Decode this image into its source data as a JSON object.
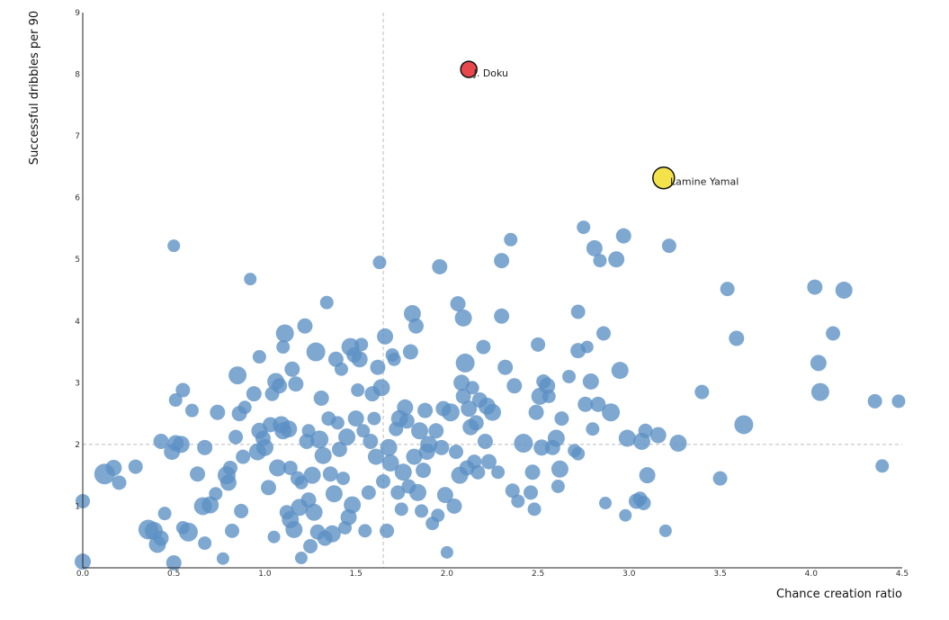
{
  "chart_data": {
    "type": "scatter",
    "title": "",
    "xlabel": "Chance creation ratio",
    "ylabel": "Successful dribbles per 90",
    "xlim": [
      0,
      4.5
    ],
    "ylim": [
      0,
      9
    ],
    "x_ticks": [
      "0.0",
      "0.5",
      "1.0",
      "1.5",
      "2.0",
      "2.5",
      "3.0",
      "3.5",
      "4.0",
      "4.5"
    ],
    "y_ticks": [
      "1",
      "2",
      "3",
      "4",
      "5",
      "6",
      "7",
      "8",
      "9"
    ],
    "reference_lines": {
      "x": 1.65,
      "y": 2.0
    },
    "grid": false,
    "colors": {
      "points": "#5b8fc4",
      "doku": "#e8474c",
      "yamal": "#f3e24a",
      "reference": "#bbbbbb"
    },
    "highlighted": [
      {
        "label": "J. Doku",
        "x": 2.12,
        "y": 8.08,
        "size": 0.5,
        "color": "#e8474c"
      },
      {
        "label": "Lamine Yamal",
        "x": 3.19,
        "y": 6.32,
        "size": 0.8,
        "color": "#f3e24a"
      }
    ],
    "points": [
      [
        0.0,
        0.1,
        0.5
      ],
      [
        0.0,
        1.08,
        0.4
      ],
      [
        0.12,
        1.52,
        0.75
      ],
      [
        0.17,
        1.62,
        0.5
      ],
      [
        0.2,
        1.38,
        0.4
      ],
      [
        0.29,
        1.64,
        0.4
      ],
      [
        0.36,
        0.62,
        0.7
      ],
      [
        0.39,
        0.6,
        0.6
      ],
      [
        0.41,
        0.38,
        0.55
      ],
      [
        0.43,
        0.48,
        0.45
      ],
      [
        0.45,
        0.88,
        0.35
      ],
      [
        0.43,
        2.05,
        0.45
      ],
      [
        0.49,
        1.88,
        0.5
      ],
      [
        0.51,
        2.02,
        0.5
      ],
      [
        0.54,
        2.0,
        0.55
      ],
      [
        0.5,
        5.22,
        0.3
      ],
      [
        0.51,
        2.72,
        0.35
      ],
      [
        0.55,
        2.88,
        0.4
      ],
      [
        0.5,
        0.08,
        0.45
      ],
      [
        0.55,
        0.65,
        0.35
      ],
      [
        0.58,
        0.58,
        0.65
      ],
      [
        0.6,
        2.55,
        0.35
      ],
      [
        0.63,
        1.52,
        0.45
      ],
      [
        0.67,
        1.95,
        0.45
      ],
      [
        0.66,
        1.0,
        0.6
      ],
      [
        0.67,
        0.4,
        0.35
      ],
      [
        0.7,
        1.02,
        0.55
      ],
      [
        0.73,
        1.2,
        0.35
      ],
      [
        0.74,
        2.52,
        0.45
      ],
      [
        0.77,
        0.15,
        0.3
      ],
      [
        0.79,
        1.5,
        0.6
      ],
      [
        0.8,
        1.38,
        0.5
      ],
      [
        0.81,
        1.62,
        0.4
      ],
      [
        0.82,
        0.6,
        0.4
      ],
      [
        0.84,
        2.12,
        0.4
      ],
      [
        0.85,
        3.12,
        0.6
      ],
      [
        0.86,
        2.5,
        0.45
      ],
      [
        0.87,
        0.92,
        0.4
      ],
      [
        0.88,
        1.8,
        0.4
      ],
      [
        0.89,
        2.6,
        0.35
      ],
      [
        0.92,
        4.68,
        0.3
      ],
      [
        0.94,
        2.82,
        0.45
      ],
      [
        0.96,
        1.88,
        0.55
      ],
      [
        0.97,
        2.22,
        0.5
      ],
      [
        0.97,
        3.42,
        0.35
      ],
      [
        0.99,
        2.1,
        0.45
      ],
      [
        1.0,
        1.95,
        0.55
      ],
      [
        1.02,
        1.3,
        0.45
      ],
      [
        1.03,
        2.32,
        0.45
      ],
      [
        1.04,
        2.82,
        0.4
      ],
      [
        1.05,
        0.5,
        0.3
      ],
      [
        1.06,
        3.02,
        0.55
      ],
      [
        1.07,
        1.62,
        0.55
      ],
      [
        1.08,
        2.95,
        0.45
      ],
      [
        1.09,
        2.32,
        0.55
      ],
      [
        1.1,
        3.58,
        0.35
      ],
      [
        1.1,
        2.22,
        0.55
      ],
      [
        1.11,
        3.8,
        0.6
      ],
      [
        1.12,
        0.9,
        0.4
      ],
      [
        1.13,
        2.25,
        0.55
      ],
      [
        1.14,
        1.62,
        0.4
      ],
      [
        1.14,
        0.78,
        0.55
      ],
      [
        1.15,
        3.22,
        0.45
      ],
      [
        1.16,
        0.62,
        0.55
      ],
      [
        1.17,
        2.98,
        0.45
      ],
      [
        1.18,
        1.45,
        0.4
      ],
      [
        1.19,
        0.98,
        0.55
      ],
      [
        1.2,
        1.38,
        0.35
      ],
      [
        1.2,
        0.16,
        0.3
      ],
      [
        1.22,
        3.92,
        0.45
      ],
      [
        1.23,
        2.05,
        0.45
      ],
      [
        1.24,
        1.1,
        0.45
      ],
      [
        1.24,
        2.22,
        0.35
      ],
      [
        1.25,
        0.35,
        0.4
      ],
      [
        1.26,
        1.5,
        0.55
      ],
      [
        1.27,
        0.9,
        0.55
      ],
      [
        1.28,
        3.5,
        0.65
      ],
      [
        1.29,
        0.58,
        0.45
      ],
      [
        1.3,
        2.08,
        0.6
      ],
      [
        1.31,
        2.75,
        0.45
      ],
      [
        1.32,
        1.82,
        0.55
      ],
      [
        1.33,
        0.48,
        0.45
      ],
      [
        1.34,
        4.3,
        0.35
      ],
      [
        1.35,
        2.42,
        0.4
      ],
      [
        1.36,
        1.52,
        0.45
      ],
      [
        1.37,
        0.55,
        0.55
      ],
      [
        1.38,
        1.2,
        0.55
      ],
      [
        1.39,
        3.38,
        0.45
      ],
      [
        1.4,
        2.35,
        0.35
      ],
      [
        1.41,
        1.92,
        0.45
      ],
      [
        1.42,
        3.22,
        0.35
      ],
      [
        1.43,
        1.45,
        0.35
      ],
      [
        1.44,
        0.65,
        0.35
      ],
      [
        1.45,
        2.12,
        0.55
      ],
      [
        1.46,
        0.82,
        0.5
      ],
      [
        1.47,
        3.58,
        0.6
      ],
      [
        1.48,
        1.02,
        0.55
      ],
      [
        1.49,
        3.45,
        0.45
      ],
      [
        1.5,
        2.42,
        0.5
      ],
      [
        1.51,
        2.88,
        0.35
      ],
      [
        1.52,
        3.38,
        0.5
      ],
      [
        1.53,
        3.62,
        0.35
      ],
      [
        1.54,
        2.22,
        0.35
      ],
      [
        1.55,
        0.6,
        0.35
      ],
      [
        1.57,
        1.22,
        0.4
      ],
      [
        1.58,
        2.05,
        0.45
      ],
      [
        1.59,
        2.82,
        0.45
      ],
      [
        1.6,
        2.42,
        0.35
      ],
      [
        1.61,
        1.8,
        0.5
      ],
      [
        1.62,
        3.25,
        0.45
      ],
      [
        1.63,
        4.95,
        0.35
      ],
      [
        1.64,
        2.92,
        0.55
      ],
      [
        1.65,
        1.4,
        0.4
      ],
      [
        1.66,
        3.75,
        0.5
      ],
      [
        1.67,
        0.6,
        0.4
      ],
      [
        1.68,
        1.95,
        0.55
      ],
      [
        1.69,
        1.7,
        0.55
      ],
      [
        1.7,
        3.45,
        0.35
      ],
      [
        1.71,
        3.38,
        0.35
      ],
      [
        1.72,
        2.25,
        0.4
      ],
      [
        1.73,
        1.22,
        0.4
      ],
      [
        1.74,
        2.42,
        0.55
      ],
      [
        1.75,
        0.95,
        0.35
      ],
      [
        1.76,
        1.55,
        0.55
      ],
      [
        1.77,
        2.6,
        0.5
      ],
      [
        1.78,
        2.38,
        0.45
      ],
      [
        1.79,
        1.32,
        0.4
      ],
      [
        1.8,
        3.5,
        0.45
      ],
      [
        1.81,
        4.12,
        0.55
      ],
      [
        1.82,
        1.8,
        0.5
      ],
      [
        1.83,
        3.92,
        0.45
      ],
      [
        1.84,
        1.22,
        0.55
      ],
      [
        1.85,
        2.22,
        0.55
      ],
      [
        1.86,
        0.92,
        0.35
      ],
      [
        1.87,
        1.58,
        0.45
      ],
      [
        1.88,
        2.55,
        0.45
      ],
      [
        1.89,
        1.88,
        0.5
      ],
      [
        1.9,
        2.0,
        0.55
      ],
      [
        1.92,
        0.72,
        0.35
      ],
      [
        1.94,
        2.22,
        0.45
      ],
      [
        1.95,
        0.85,
        0.35
      ],
      [
        1.96,
        4.88,
        0.45
      ],
      [
        1.97,
        1.95,
        0.45
      ],
      [
        1.98,
        2.58,
        0.45
      ],
      [
        1.99,
        1.18,
        0.5
      ],
      [
        2.0,
        0.25,
        0.3
      ],
      [
        2.02,
        2.52,
        0.6
      ],
      [
        2.04,
        1.0,
        0.45
      ],
      [
        2.05,
        1.88,
        0.4
      ],
      [
        2.06,
        4.28,
        0.45
      ],
      [
        2.07,
        1.5,
        0.55
      ],
      [
        2.08,
        3.0,
        0.5
      ],
      [
        2.09,
        2.78,
        0.45
      ],
      [
        2.09,
        4.05,
        0.55
      ],
      [
        2.1,
        3.32,
        0.65
      ],
      [
        2.11,
        1.62,
        0.45
      ],
      [
        2.12,
        2.58,
        0.5
      ],
      [
        2.13,
        2.28,
        0.5
      ],
      [
        2.14,
        2.92,
        0.35
      ],
      [
        2.15,
        1.72,
        0.4
      ],
      [
        2.16,
        2.35,
        0.45
      ],
      [
        2.17,
        1.55,
        0.4
      ],
      [
        2.18,
        2.72,
        0.45
      ],
      [
        2.2,
        3.58,
        0.4
      ],
      [
        2.21,
        2.05,
        0.45
      ],
      [
        2.22,
        2.62,
        0.55
      ],
      [
        2.23,
        1.72,
        0.45
      ],
      [
        2.25,
        2.52,
        0.55
      ],
      [
        2.28,
        1.55,
        0.35
      ],
      [
        2.3,
        4.98,
        0.45
      ],
      [
        2.3,
        4.08,
        0.45
      ],
      [
        2.32,
        3.25,
        0.45
      ],
      [
        2.35,
        5.32,
        0.35
      ],
      [
        2.36,
        1.25,
        0.4
      ],
      [
        2.37,
        2.95,
        0.45
      ],
      [
        2.39,
        1.08,
        0.35
      ],
      [
        2.42,
        2.02,
        0.65
      ],
      [
        2.46,
        1.22,
        0.4
      ],
      [
        2.47,
        1.55,
        0.45
      ],
      [
        2.48,
        0.95,
        0.35
      ],
      [
        2.49,
        2.52,
        0.45
      ],
      [
        2.5,
        3.62,
        0.4
      ],
      [
        2.51,
        2.78,
        0.55
      ],
      [
        2.52,
        1.95,
        0.5
      ],
      [
        2.53,
        3.02,
        0.4
      ],
      [
        2.55,
        2.95,
        0.5
      ],
      [
        2.56,
        2.78,
        0.35
      ],
      [
        2.58,
        1.95,
        0.45
      ],
      [
        2.6,
        2.1,
        0.55
      ],
      [
        2.61,
        1.32,
        0.35
      ],
      [
        2.62,
        1.6,
        0.55
      ],
      [
        2.63,
        2.42,
        0.4
      ],
      [
        2.67,
        3.1,
        0.35
      ],
      [
        2.7,
        1.9,
        0.35
      ],
      [
        2.72,
        1.85,
        0.35
      ],
      [
        2.72,
        3.52,
        0.45
      ],
      [
        2.72,
        4.15,
        0.4
      ],
      [
        2.75,
        5.52,
        0.35
      ],
      [
        2.76,
        2.65,
        0.45
      ],
      [
        2.77,
        3.58,
        0.3
      ],
      [
        2.79,
        3.02,
        0.5
      ],
      [
        2.8,
        2.25,
        0.35
      ],
      [
        2.81,
        5.18,
        0.5
      ],
      [
        2.83,
        2.65,
        0.45
      ],
      [
        2.84,
        4.98,
        0.35
      ],
      [
        2.86,
        3.8,
        0.4
      ],
      [
        2.87,
        1.05,
        0.3
      ],
      [
        2.9,
        2.52,
        0.6
      ],
      [
        2.93,
        5.0,
        0.5
      ],
      [
        2.95,
        3.2,
        0.55
      ],
      [
        2.97,
        5.38,
        0.45
      ],
      [
        2.98,
        0.85,
        0.3
      ],
      [
        2.99,
        2.1,
        0.55
      ],
      [
        3.04,
        1.08,
        0.45
      ],
      [
        3.06,
        1.12,
        0.4
      ],
      [
        3.07,
        2.05,
        0.55
      ],
      [
        3.08,
        1.05,
        0.4
      ],
      [
        3.09,
        2.22,
        0.4
      ],
      [
        3.1,
        1.5,
        0.5
      ],
      [
        3.16,
        2.15,
        0.5
      ],
      [
        3.2,
        0.6,
        0.3
      ],
      [
        3.22,
        5.22,
        0.4
      ],
      [
        3.27,
        2.02,
        0.55
      ],
      [
        3.4,
        2.85,
        0.4
      ],
      [
        3.5,
        1.45,
        0.4
      ],
      [
        3.54,
        4.52,
        0.4
      ],
      [
        3.59,
        3.72,
        0.45
      ],
      [
        3.63,
        2.32,
        0.65
      ],
      [
        4.02,
        4.55,
        0.45
      ],
      [
        4.04,
        3.32,
        0.5
      ],
      [
        4.05,
        2.85,
        0.6
      ],
      [
        4.12,
        3.8,
        0.4
      ],
      [
        4.18,
        4.5,
        0.55
      ],
      [
        4.35,
        2.7,
        0.4
      ],
      [
        4.39,
        1.65,
        0.35
      ],
      [
        4.48,
        2.7,
        0.35
      ]
    ]
  }
}
